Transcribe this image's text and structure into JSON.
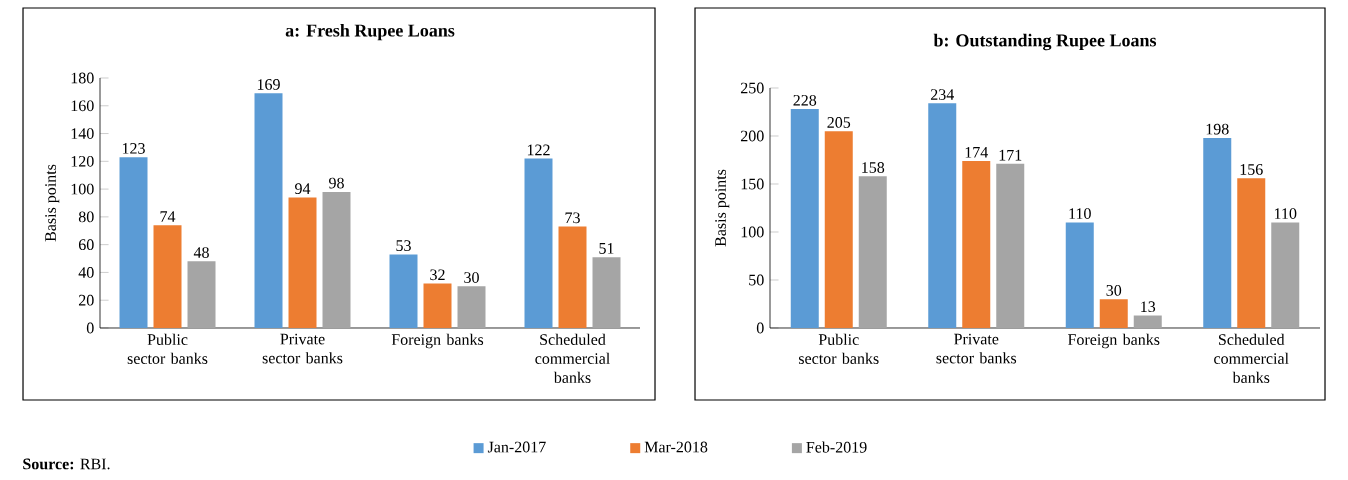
{
  "chart_data": [
    {
      "type": "bar",
      "title": "a: Fresh Rupee Loans",
      "ylabel": "Basis points",
      "categories": [
        "Public sector banks",
        "Private sector banks",
        "Foreign banks",
        "Scheduled commercial banks"
      ],
      "series": [
        {
          "name": "Jan-2017",
          "color": "#5b9bd5",
          "values": [
            123,
            169,
            53,
            122
          ]
        },
        {
          "name": "Mar-2018",
          "color": "#ed7d31",
          "values": [
            74,
            94,
            32,
            73
          ]
        },
        {
          "name": "Feb-2019",
          "color": "#a5a5a5",
          "values": [
            48,
            98,
            30,
            51
          ]
        }
      ],
      "ylim": [
        0,
        180
      ],
      "yticks": [
        0,
        20,
        40,
        60,
        80,
        100,
        120,
        140,
        160,
        180
      ],
      "data_labels": true,
      "legend": "bottom",
      "annotations": [
        "**Source:** RBI."
      ]
    },
    {
      "type": "bar",
      "title": "b: Outstanding Rupee Loans",
      "ylabel": "Basis points",
      "categories": [
        "Public sector banks",
        "Private sector banks",
        "Foreign banks",
        "Scheduled commercial banks"
      ],
      "series": [
        {
          "color": "#5b9bd5",
          "values": [
            228,
            234,
            110,
            198
          ]
        },
        {
          "color": "#ed7d31",
          "values": [
            205,
            174,
            30,
            156
          ]
        },
        {
          "color": "#a5a5a5",
          "values": [
            158,
            171,
            13,
            110
          ]
        }
      ],
      "ylim": [
        0,
        250
      ],
      "yticks": [
        0,
        50,
        100,
        150,
        200,
        250
      ],
      "data_labels": true
    }
  ]
}
